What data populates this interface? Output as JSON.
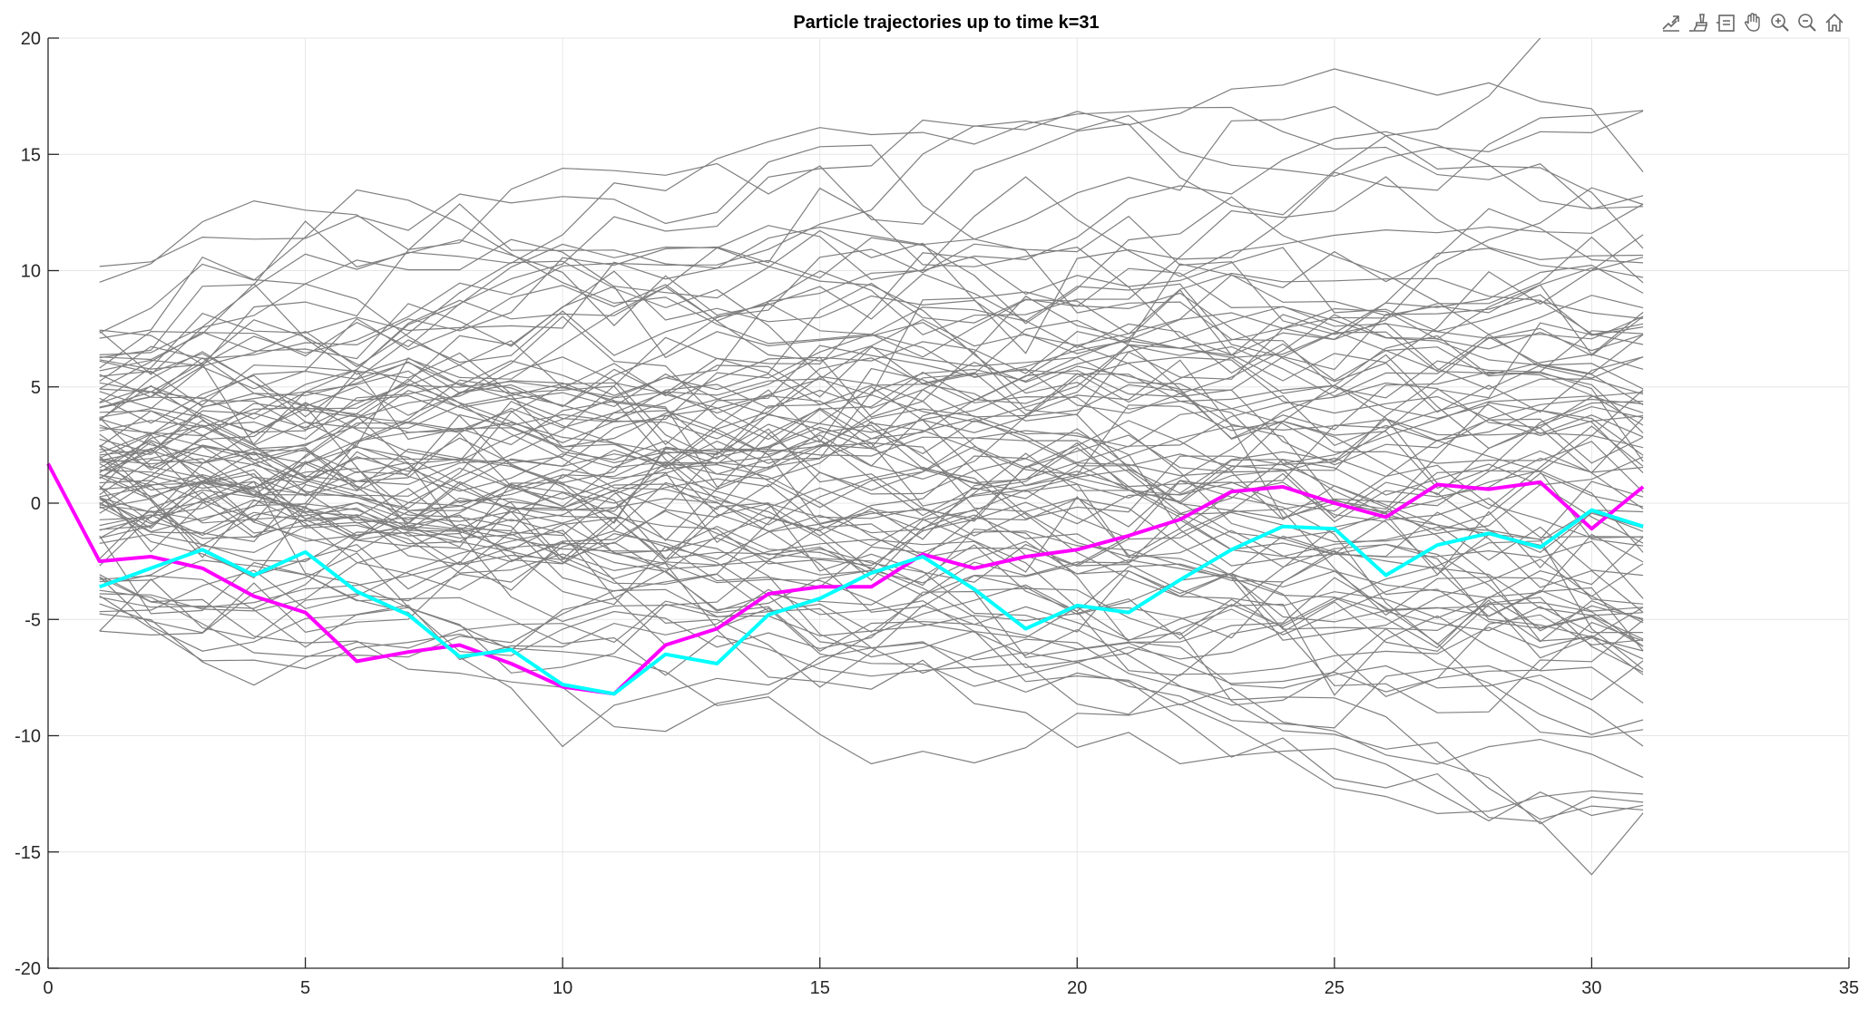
{
  "toolbar": {
    "icons": [
      "export-icon",
      "brush-icon",
      "data-tips-icon",
      "pan-icon",
      "zoom-in-icon",
      "zoom-out-icon",
      "home-icon"
    ]
  },
  "chart_data": {
    "type": "line",
    "title": "Particle trajectories up to time k=31",
    "xlabel": "",
    "ylabel": "",
    "xlim": [
      0,
      35
    ],
    "ylim": [
      -20,
      20
    ],
    "xticks": [
      0,
      5,
      10,
      15,
      20,
      25,
      30,
      35
    ],
    "yticks": [
      20,
      15,
      10,
      5,
      0,
      -5,
      -10,
      -15,
      -20
    ],
    "grid": true,
    "colors": {
      "particles": "#7f7f7f",
      "magenta": "#ff00ff",
      "cyan": "#00ffff",
      "grid": "#e6e6e6",
      "axis": "#262626"
    },
    "particle_count": 100,
    "particle_x_range": [
      1,
      31
    ],
    "series": [
      {
        "color": "magenta",
        "x": [
          0,
          1,
          2,
          3,
          4,
          5,
          6,
          7,
          8,
          9,
          10,
          11,
          12,
          13,
          14,
          15,
          16,
          17,
          18,
          19,
          20,
          21,
          22,
          23,
          24,
          25,
          26,
          27,
          28,
          29,
          30,
          31
        ],
        "values": [
          1.7,
          -2.5,
          -2.3,
          -2.8,
          -4.0,
          -4.7,
          -6.8,
          -6.4,
          -6.1,
          -6.9,
          -7.9,
          -8.2,
          -6.1,
          -5.4,
          -3.9,
          -3.6,
          -3.6,
          -2.2,
          -2.8,
          -2.3,
          -2.0,
          -1.4,
          -0.7,
          0.5,
          0.7,
          0.0,
          -0.6,
          0.8,
          0.6,
          0.9,
          -1.1,
          0.7
        ]
      },
      {
        "color": "cyan",
        "x": [
          1,
          2,
          3,
          4,
          5,
          6,
          7,
          8,
          9,
          10,
          11,
          12,
          13,
          14,
          15,
          16,
          17,
          18,
          19,
          20,
          21,
          22,
          23,
          24,
          25,
          26,
          27,
          28,
          29,
          30,
          31
        ],
        "values": [
          -3.6,
          -2.8,
          -2.0,
          -3.1,
          -2.1,
          -3.8,
          -4.8,
          -6.6,
          -6.3,
          -7.8,
          -8.2,
          -6.5,
          -6.9,
          -4.8,
          -4.1,
          -3.0,
          -2.3,
          -3.7,
          -5.4,
          -4.4,
          -4.7,
          -3.3,
          -2.0,
          -1.0,
          -1.1,
          -3.1,
          -1.8,
          -1.3,
          -1.9,
          -0.3,
          -1.0
        ]
      }
    ]
  }
}
